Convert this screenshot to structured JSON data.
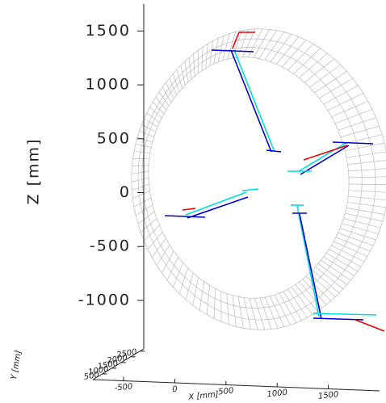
{
  "chart_data": {
    "type": "3d-wireframe",
    "zlabel": "Z [mm]",
    "ylabel": "Y [mm]",
    "xlabel": "X [mm]",
    "zlim": [
      -1450,
      1750
    ],
    "zticks": [
      1500,
      1000,
      500,
      0,
      -500,
      -1000
    ],
    "ylim": [
      0,
      2700
    ],
    "yticks": [
      500,
      1000,
      1500,
      2000,
      2500
    ],
    "xlim": [
      -800,
      2000
    ],
    "xticks": [
      -500,
      0,
      500,
      1000,
      1500
    ]
  }
}
